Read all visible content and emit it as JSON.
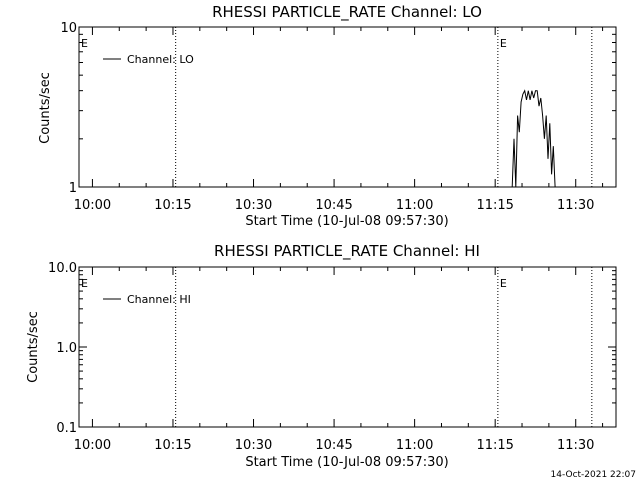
{
  "chart_data": [
    {
      "type": "line",
      "title": "RHESSI PARTICLE_RATE Channel: LO",
      "ylabel": "Counts/sec",
      "xlabel": "Start Time (10-Jul-08 09:57:30)",
      "yscale": "log",
      "ylim": [
        1,
        10
      ],
      "ytick_labels": [
        "1",
        "10"
      ],
      "xlim_minutes": [
        -2.5,
        97.5
      ],
      "xticks": [
        "10:00",
        "10:15",
        "10:30",
        "10:45",
        "11:00",
        "11:15",
        "11:30"
      ],
      "event_markers": [
        {
          "time": "09:57:30",
          "label": "E",
          "dotted": false
        },
        {
          "time": "10:15:30",
          "label": "",
          "dotted": true
        },
        {
          "time": "11:15:30",
          "label": "E",
          "dotted": true
        },
        {
          "time": "11:33:00",
          "label": "",
          "dotted": true
        }
      ],
      "legend": {
        "label": "Channel: LO",
        "placement": "top-left"
      },
      "series": [
        {
          "name": "Channel: LO",
          "x": [
            "11:18:10",
            "11:18:30",
            "11:18:50",
            "11:19:10",
            "11:19:30",
            "11:19:50",
            "11:20:10",
            "11:20:30",
            "11:20:50",
            "11:21:10",
            "11:21:30",
            "11:21:50",
            "11:22:10",
            "11:22:30",
            "11:22:50",
            "11:23:10",
            "11:23:30",
            "11:23:50",
            "11:24:10",
            "11:24:30",
            "11:24:50",
            "11:25:10",
            "11:25:30",
            "11:25:50",
            "11:26:10"
          ],
          "y": [
            1,
            2.0,
            1,
            2.8,
            2.2,
            3.4,
            3.8,
            4.0,
            3.5,
            4.0,
            3.5,
            4.0,
            3.6,
            4.0,
            4.0,
            3.2,
            3.6,
            2.8,
            2.0,
            2.8,
            1.5,
            2.5,
            1.2,
            1.8,
            1
          ]
        }
      ]
    },
    {
      "type": "line",
      "title": "RHESSI PARTICLE_RATE Channel: HI",
      "ylabel": "Counts/sec",
      "xlabel": "Start Time (10-Jul-08 09:57:30)",
      "yscale": "log",
      "ylim": [
        0.1,
        10
      ],
      "ytick_labels": [
        "0.1",
        "1.0",
        "10.0"
      ],
      "xlim_minutes": [
        -2.5,
        97.5
      ],
      "xticks": [
        "10:00",
        "10:15",
        "10:30",
        "10:45",
        "11:00",
        "11:15",
        "11:30"
      ],
      "event_markers": [
        {
          "time": "09:57:30",
          "label": "E",
          "dotted": false
        },
        {
          "time": "10:15:30",
          "label": "",
          "dotted": true
        },
        {
          "time": "11:15:30",
          "label": "E",
          "dotted": true
        },
        {
          "time": "11:33:00",
          "label": "",
          "dotted": true
        }
      ],
      "legend": {
        "label": "Channel: HI",
        "placement": "top-left"
      },
      "series": [
        {
          "name": "Channel: HI",
          "x": [],
          "y": []
        }
      ]
    }
  ],
  "footer": {
    "timestamp": "14-Oct-2021 22:07"
  }
}
